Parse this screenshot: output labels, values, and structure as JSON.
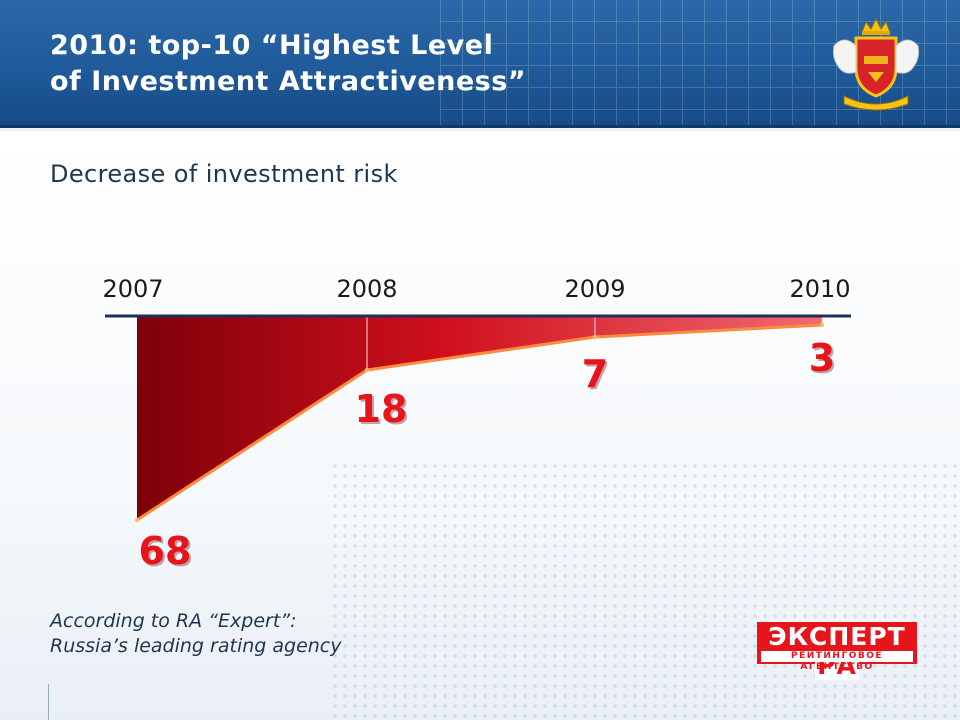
{
  "header": {
    "title": "2010: top-10 “Highest Level\nof Investment Attractiveness”"
  },
  "subtitle": "Decrease of investment risk",
  "chart_data": {
    "type": "area",
    "x": [
      "2007",
      "2008",
      "2009",
      "2010"
    ],
    "values": [
      68,
      18,
      7,
      3
    ],
    "data_labels": [
      "68",
      "18",
      "7",
      "3"
    ],
    "ylim": [
      0,
      70
    ],
    "inverted": true,
    "colors": {
      "fill_dark": "#7d0008",
      "fill_light": "#f06a72",
      "line": "#ff8a3d",
      "axis": "#1f2f5a",
      "labels": "#e8141c"
    }
  },
  "footnote": {
    "line1": "According to RA “Expert”:",
    "line2": "Russia’s leading rating agency"
  },
  "logo": {
    "top_text": "ЭКСПЕРТ РА",
    "top_main": "ЭКСПЕРТ",
    "top_ra": "РА",
    "bottom_text": "РЕЙТИНГОВОЕ АГЕНТСТВО"
  }
}
